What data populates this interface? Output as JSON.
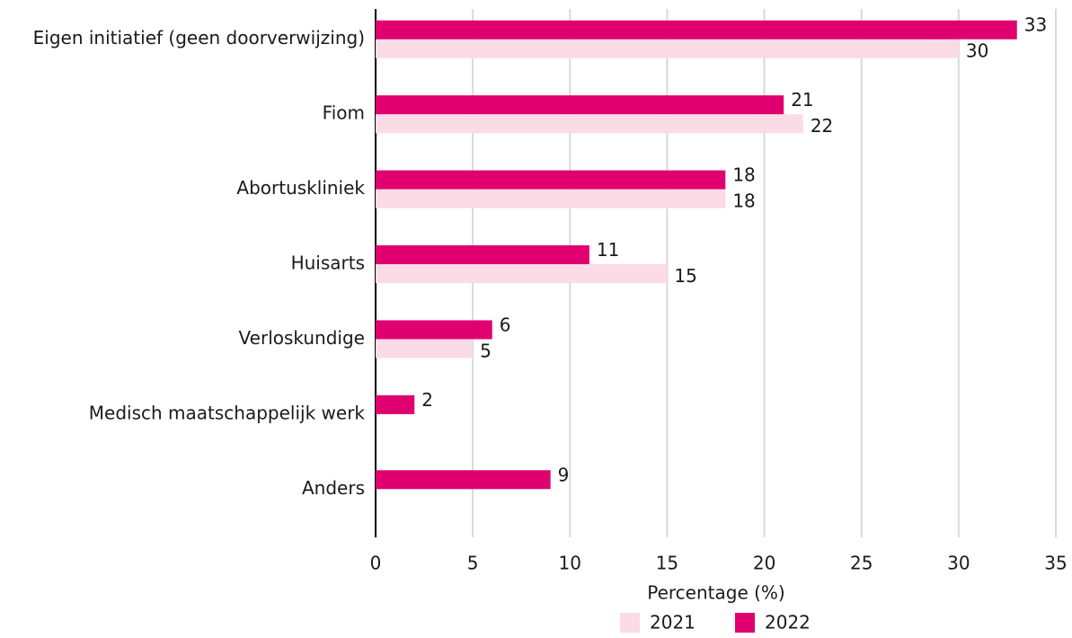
{
  "chart_data": {
    "type": "bar",
    "orientation": "horizontal",
    "categories": [
      "Eigen initiatief (geen doorverwijzing)",
      "Fiom",
      "Abortuskliniek",
      "Huisarts",
      "Verloskundige",
      "Medisch maatschappelijk werk",
      "Anders"
    ],
    "series": [
      {
        "name": "2021",
        "color": "#fadbe6",
        "values": [
          30,
          22,
          18,
          15,
          5,
          null,
          null
        ]
      },
      {
        "name": "2022",
        "color": "#e0006f",
        "values": [
          33,
          21,
          18,
          11,
          6,
          2,
          9
        ]
      }
    ],
    "xlabel": "Percentage (%)",
    "xlim": [
      0,
      35
    ],
    "xticks": [
      0,
      5,
      10,
      15,
      20,
      25,
      30,
      35
    ],
    "grid": true,
    "legend": "bottom"
  }
}
